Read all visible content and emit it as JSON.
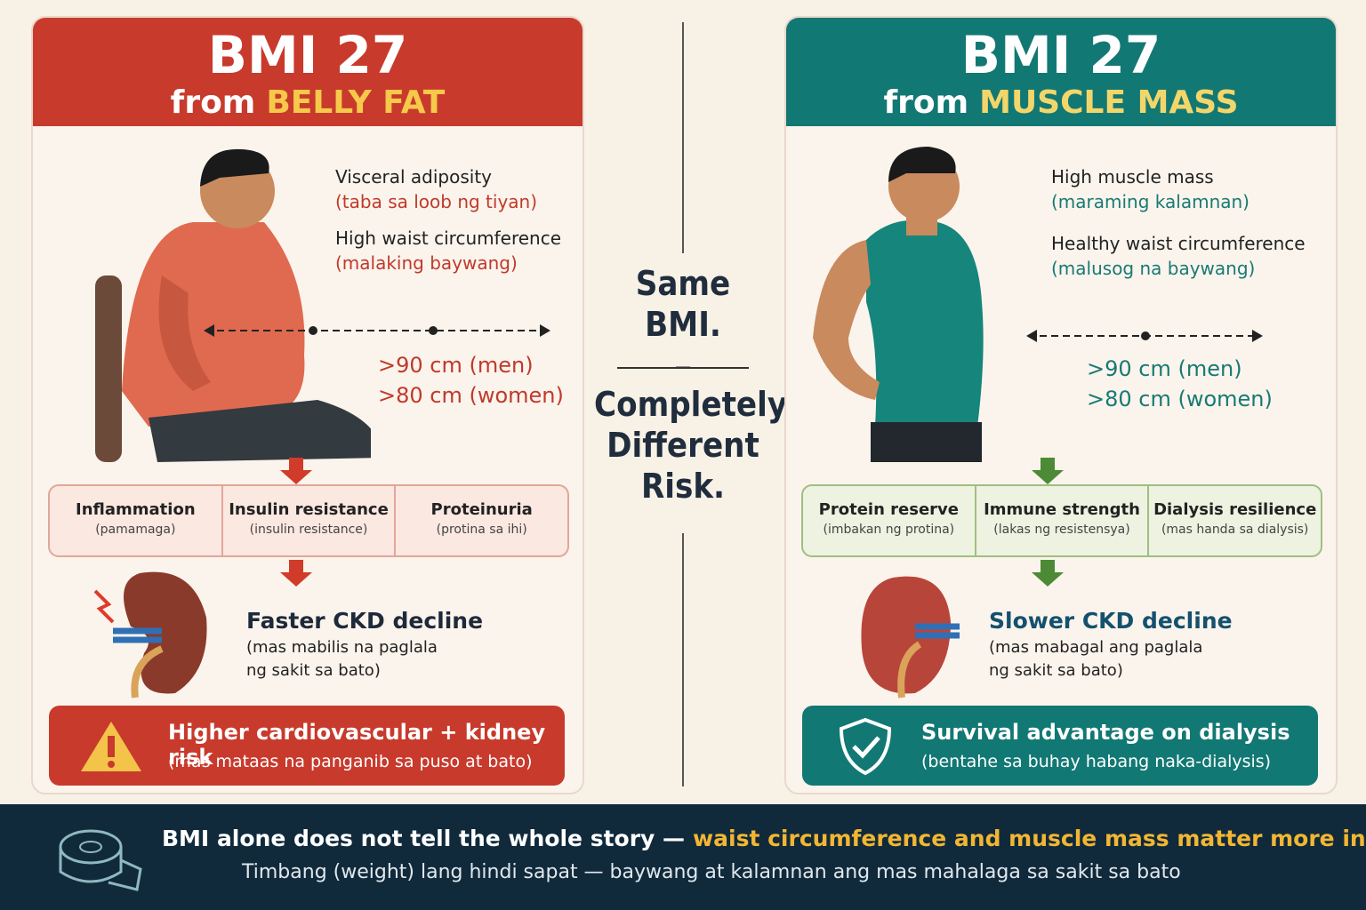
{
  "left": {
    "title": "BMI 27",
    "subtitle_prefix": "from",
    "subtitle_highlight": "BELLY FAT",
    "notes": [
      {
        "label": "Visceral adiposity",
        "translation": "(taba sa loob ng tiyan)"
      },
      {
        "label": "High waist circumference",
        "translation": "(malaking baywang)"
      }
    ],
    "thresholds": [
      ">90 cm (men)",
      ">80 cm (women)"
    ],
    "effects": [
      {
        "label": "Inflammation",
        "translation": "(pamamaga)"
      },
      {
        "label": "Insulin resistance",
        "translation": "(insulin resistance)"
      },
      {
        "label": "Proteinuria",
        "translation": "(protina sa ihi)"
      }
    ],
    "outcome": {
      "title": "Faster CKD decline",
      "translation": [
        "(mas mabilis na paglala",
        "ng sakit sa bato)"
      ]
    },
    "banner": {
      "title": "Higher cardiovascular + kidney risk",
      "translation": "(mas mataas na panganib sa puso at bato)"
    }
  },
  "right": {
    "title": "BMI 27",
    "subtitle_prefix": "from",
    "subtitle_highlight": "MUSCLE MASS",
    "notes": [
      {
        "label": "High muscle mass",
        "translation": "(maraming kalamnan)"
      },
      {
        "label": "Healthy waist circumference",
        "translation": "(malusog na baywang)"
      }
    ],
    "thresholds": [
      ">90 cm (men)",
      ">80 cm (women)"
    ],
    "effects": [
      {
        "label": "Protein reserve",
        "translation": "(imbakan ng protina)"
      },
      {
        "label": "Immune strength",
        "translation": "(lakas ng resistensya)"
      },
      {
        "label": "Dialysis resilience",
        "translation": "(mas handa sa dialysis)"
      }
    ],
    "outcome": {
      "title": "Slower CKD decline",
      "translation": [
        "(mas mabagal ang paglala",
        "ng sakit sa bato)"
      ]
    },
    "banner": {
      "title": "Survival advantage on dialysis",
      "translation": "(bentahe sa buhay habang naka-dialysis)"
    }
  },
  "middle": {
    "top": "Same BMI.",
    "bottom": "Completely Different Risk."
  },
  "footer": {
    "main_prefix": "BMI alone does not tell the whole story —",
    "main_highlight": "waist circumference and muscle mass matter more in CKD",
    "translation": "Timbang (weight) lang hindi sapat — baywang at kalamnan ang mas mahalaga sa sakit sa bato"
  }
}
